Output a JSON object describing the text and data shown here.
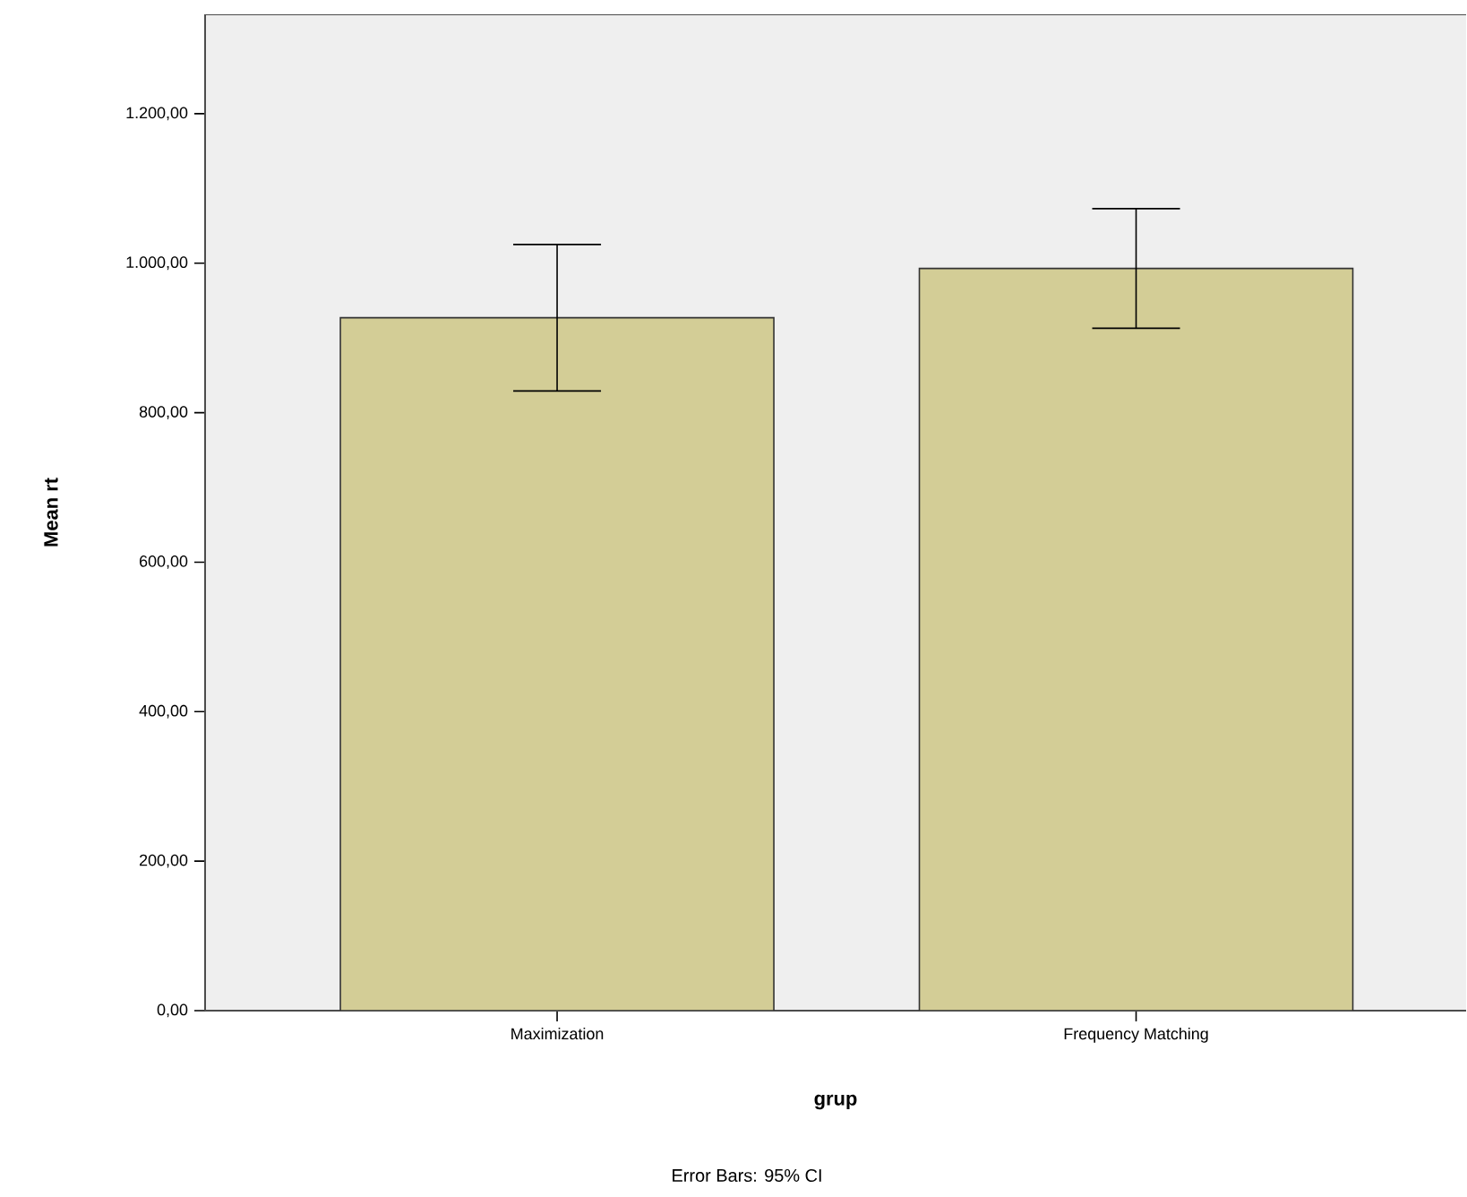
{
  "chart_data": {
    "type": "bar",
    "categories": [
      "Maximization",
      "Frequency Matching"
    ],
    "values": [
      927,
      993
    ],
    "errors": [
      98,
      80
    ],
    "color": "#d3cd96",
    "xlabel": "grup",
    "ylabel": "Mean rt",
    "ylim": [
      0,
      1333
    ],
    "yticks": [
      {
        "value": 0,
        "label": "0,00"
      },
      {
        "value": 200,
        "label": "200,00"
      },
      {
        "value": 400,
        "label": "400,00"
      },
      {
        "value": 600,
        "label": "600,00"
      },
      {
        "value": 800,
        "label": "800,00"
      },
      {
        "value": 1000,
        "label": "1.000,00"
      },
      {
        "value": 1200,
        "label": "1.200,00"
      }
    ],
    "grid": false,
    "annotations": [
      "Error Bars: 95% CI"
    ]
  }
}
